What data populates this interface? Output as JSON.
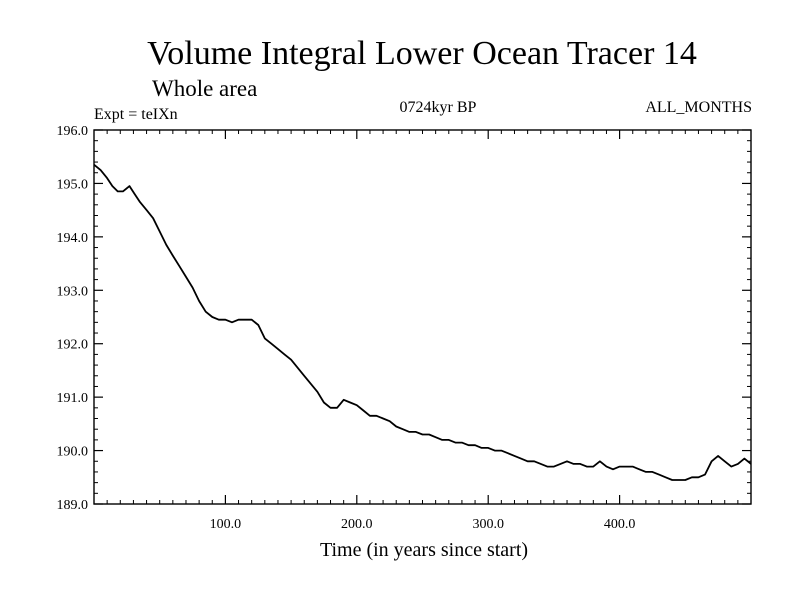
{
  "chart_data": {
    "type": "line",
    "title": "Volume Integral Lower Ocean Tracer 14",
    "subtitle": "Whole area",
    "expt_label": "Expt = teIXn",
    "period_label": "0724kyr BP",
    "months_label": "ALL_MONTHS",
    "xlabel": "Time (in years since start)",
    "ylabel": "",
    "xlim": [
      0,
      500
    ],
    "ylim": [
      189.0,
      196.0
    ],
    "xticks": [
      100,
      200,
      300,
      400
    ],
    "xtick_labels": [
      "100.0",
      "200.0",
      "300.0",
      "400.0"
    ],
    "yticks": [
      189,
      190,
      191,
      192,
      193,
      194,
      195,
      196
    ],
    "ytick_labels": [
      "189.0",
      "190.0",
      "191.0",
      "192.0",
      "193.0",
      "194.0",
      "195.0",
      "196.0"
    ],
    "grid": false,
    "series": [
      {
        "color": "#000000",
        "x": [
          0,
          5,
          10,
          14,
          18,
          22,
          27,
          31,
          35,
          40,
          45,
          50,
          55,
          60,
          65,
          70,
          75,
          80,
          85,
          90,
          95,
          100,
          105,
          110,
          115,
          120,
          125,
          130,
          135,
          140,
          145,
          150,
          155,
          160,
          165,
          170,
          175,
          180,
          185,
          190,
          195,
          200,
          205,
          210,
          215,
          220,
          225,
          230,
          235,
          240,
          245,
          250,
          255,
          260,
          265,
          270,
          275,
          280,
          285,
          290,
          295,
          300,
          305,
          310,
          315,
          320,
          325,
          330,
          335,
          340,
          345,
          350,
          355,
          360,
          365,
          370,
          375,
          380,
          385,
          390,
          395,
          400,
          405,
          410,
          415,
          420,
          425,
          430,
          435,
          440,
          445,
          450,
          455,
          460,
          465,
          470,
          475,
          480,
          485,
          490,
          495,
          500
        ],
        "y": [
          195.35,
          195.25,
          195.1,
          194.95,
          194.85,
          194.85,
          194.95,
          194.8,
          194.65,
          194.5,
          194.35,
          194.1,
          193.85,
          193.65,
          193.45,
          193.25,
          193.05,
          192.8,
          192.6,
          192.5,
          192.45,
          192.45,
          192.4,
          192.45,
          192.45,
          192.45,
          192.35,
          192.1,
          192.0,
          191.9,
          191.8,
          191.7,
          191.55,
          191.4,
          191.25,
          191.1,
          190.9,
          190.8,
          190.8,
          190.95,
          190.9,
          190.85,
          190.75,
          190.65,
          190.65,
          190.6,
          190.55,
          190.45,
          190.4,
          190.35,
          190.35,
          190.3,
          190.3,
          190.25,
          190.2,
          190.2,
          190.15,
          190.15,
          190.1,
          190.1,
          190.05,
          190.05,
          190.0,
          190.0,
          189.95,
          189.9,
          189.85,
          189.8,
          189.8,
          189.75,
          189.7,
          189.7,
          189.75,
          189.8,
          189.75,
          189.75,
          189.7,
          189.7,
          189.8,
          189.7,
          189.65,
          189.7,
          189.7,
          189.7,
          189.65,
          189.6,
          189.6,
          189.55,
          189.5,
          189.45,
          189.45,
          189.45,
          189.5,
          189.5,
          189.55,
          189.8,
          189.9,
          189.8,
          189.7,
          189.75,
          189.85,
          189.75
        ]
      }
    ]
  }
}
